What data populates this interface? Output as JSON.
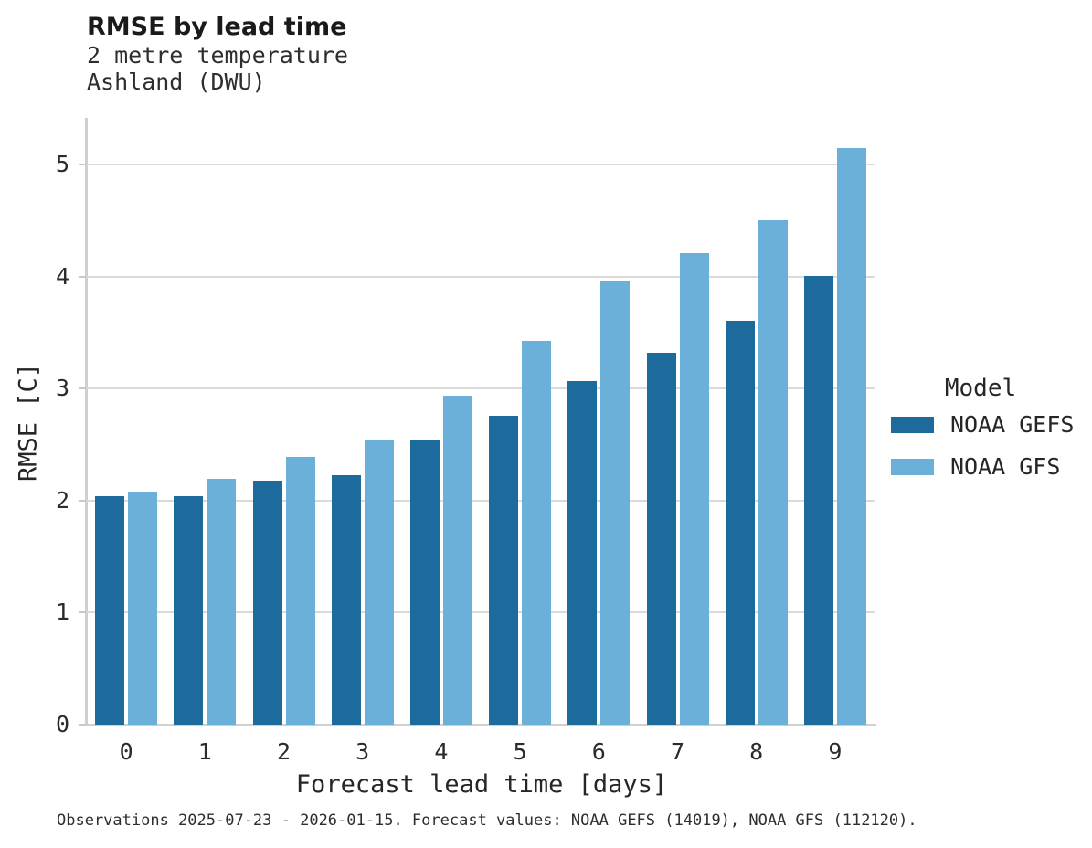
{
  "header": {
    "title": "RMSE by lead time",
    "subtitle_line1": "2 metre temperature",
    "subtitle_line2": "Ashland (DWU)"
  },
  "chart_data": {
    "type": "bar",
    "title": "RMSE by lead time",
    "subtitle": [
      "2 metre temperature",
      "Ashland (DWU)"
    ],
    "categories": [
      "0",
      "1",
      "2",
      "3",
      "4",
      "5",
      "6",
      "7",
      "8",
      "9"
    ],
    "series": [
      {
        "name": "NOAA GEFS",
        "color": "#1c6b9c",
        "values": [
          2.04,
          2.04,
          2.18,
          2.23,
          2.55,
          2.76,
          3.07,
          3.32,
          3.61,
          4.01
        ]
      },
      {
        "name": "NOAA GFS",
        "color": "#6bb0d8",
        "values": [
          2.08,
          2.2,
          2.39,
          2.54,
          2.94,
          3.43,
          3.96,
          4.21,
          4.51,
          5.15
        ]
      }
    ],
    "xlabel": "Forecast lead time [days]",
    "ylabel": "RMSE [C]",
    "ylim": [
      0,
      5.42
    ],
    "yticks": [
      0,
      1,
      2,
      3,
      4,
      5
    ],
    "grid": "horizontal-only",
    "legend_title": "Model",
    "legend_position": "right"
  },
  "colors": {
    "noaa_gefs": "#1c6b9c",
    "noaa_gfs": "#6bb0d8",
    "gridline": "#dadada",
    "spine": "#d0d0d0"
  },
  "footnote": "Observations 2025-07-23 - 2026-01-15. Forecast values: NOAA GEFS (14019), NOAA GFS (112120)."
}
